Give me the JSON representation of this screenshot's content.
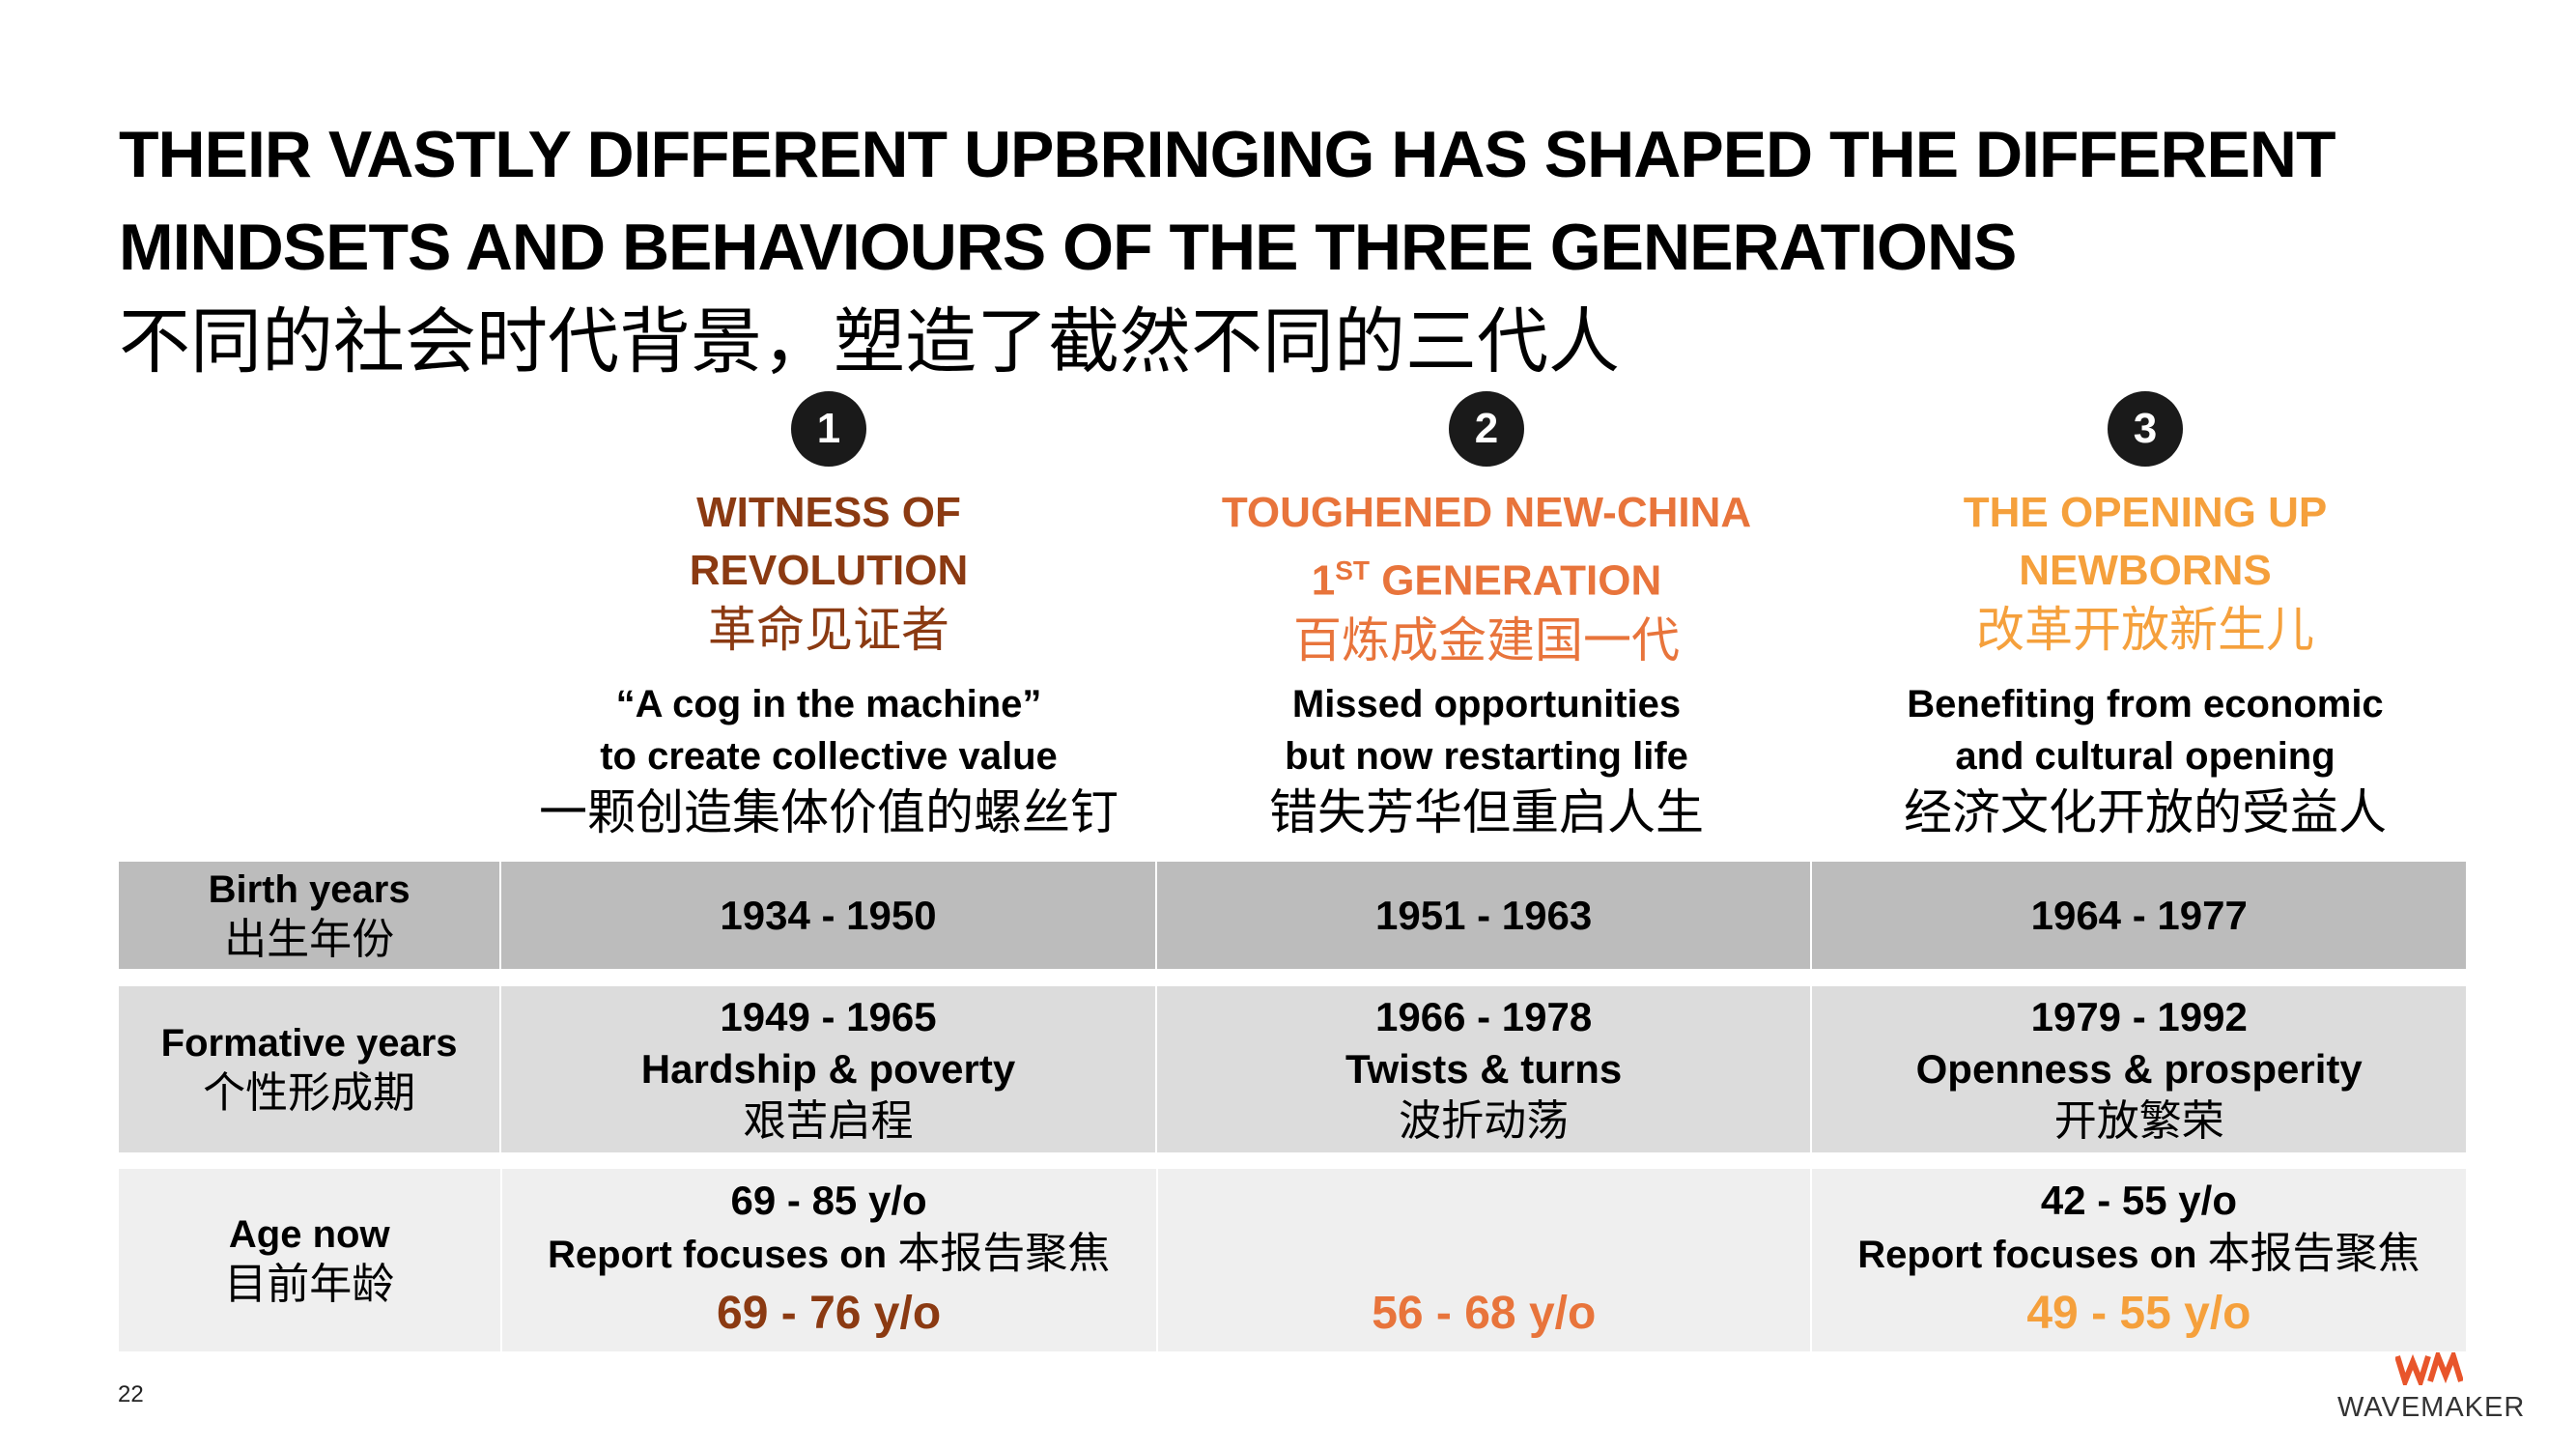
{
  "title": {
    "en_line1": "THEIR VASTLY DIFFERENT UPBRINGING HAS SHAPED THE DIFFERENT",
    "en_line2": "MINDSETS AND BEHAVIOURS OF THE THREE GENERATIONS",
    "zh": "不同的社会时代背景，塑造了截然不同的三代人"
  },
  "colors": {
    "gen1": "#8b3a12",
    "gen2": "#e8743b",
    "gen3": "#f5a03c",
    "badge": "#1a1a1a",
    "row_birth": "#bcbcbc",
    "row_formative": "#dcdcdc",
    "row_age": "#efefef"
  },
  "generations": [
    {
      "number": "1",
      "title_line1": "WITNESS OF",
      "title_line2": "REVOLUTION",
      "title_zh": "革命见证者",
      "desc_line1": "“A cog in the machine”",
      "desc_line2": "to create collective value",
      "desc_zh": "一颗创造集体价值的螺丝钉",
      "birth_years": "1934 - 1950",
      "formative_years": "1949 - 1965",
      "formative_en": "Hardship & poverty",
      "formative_zh": "艰苦启程",
      "age_range": "69 - 85 y/o",
      "focus_en": "Report focuses on ",
      "focus_zh": "本报告聚焦",
      "age_focus": "69 - 76 y/o"
    },
    {
      "number": "2",
      "title_line1": "TOUGHENED NEW-CHINA",
      "title_ordinal": "1",
      "title_sup": "ST",
      "title_line2_rest": " GENERATION",
      "title_zh": "百炼成金建国一代",
      "desc_line1": "Missed opportunities",
      "desc_line2": "but now restarting life",
      "desc_zh": "错失芳华但重启人生",
      "birth_years": "1951 - 1963",
      "formative_years": "1966 - 1978",
      "formative_en": "Twists & turns",
      "formative_zh": "波折动荡",
      "age_focus": "56 - 68 y/o"
    },
    {
      "number": "3",
      "title_line1": "THE OPENING UP",
      "title_line2": "NEWBORNS",
      "title_zh": "改革开放新生儿",
      "desc_line1": "Benefiting from economic",
      "desc_line2": "and cultural opening",
      "desc_zh": "经济文化开放的受益人",
      "birth_years": "1964 - 1977",
      "formative_years": "1979 - 1992",
      "formative_en": "Openness & prosperity",
      "formative_zh": "开放繁荣",
      "age_range": "42 - 55 y/o",
      "focus_en": "Report focuses on ",
      "focus_zh": "本报告聚焦",
      "age_focus": "49 - 55 y/o"
    }
  ],
  "rows": {
    "birth_en": "Birth years",
    "birth_zh": "出生年份",
    "formative_en": "Formative years",
    "formative_zh": "个性形成期",
    "age_en": "Age now",
    "age_zh": "目前年龄"
  },
  "footer": {
    "page_number": "22",
    "logo_text": "WAVEMAKER",
    "logo_icon": "wm-monogram-icon"
  }
}
